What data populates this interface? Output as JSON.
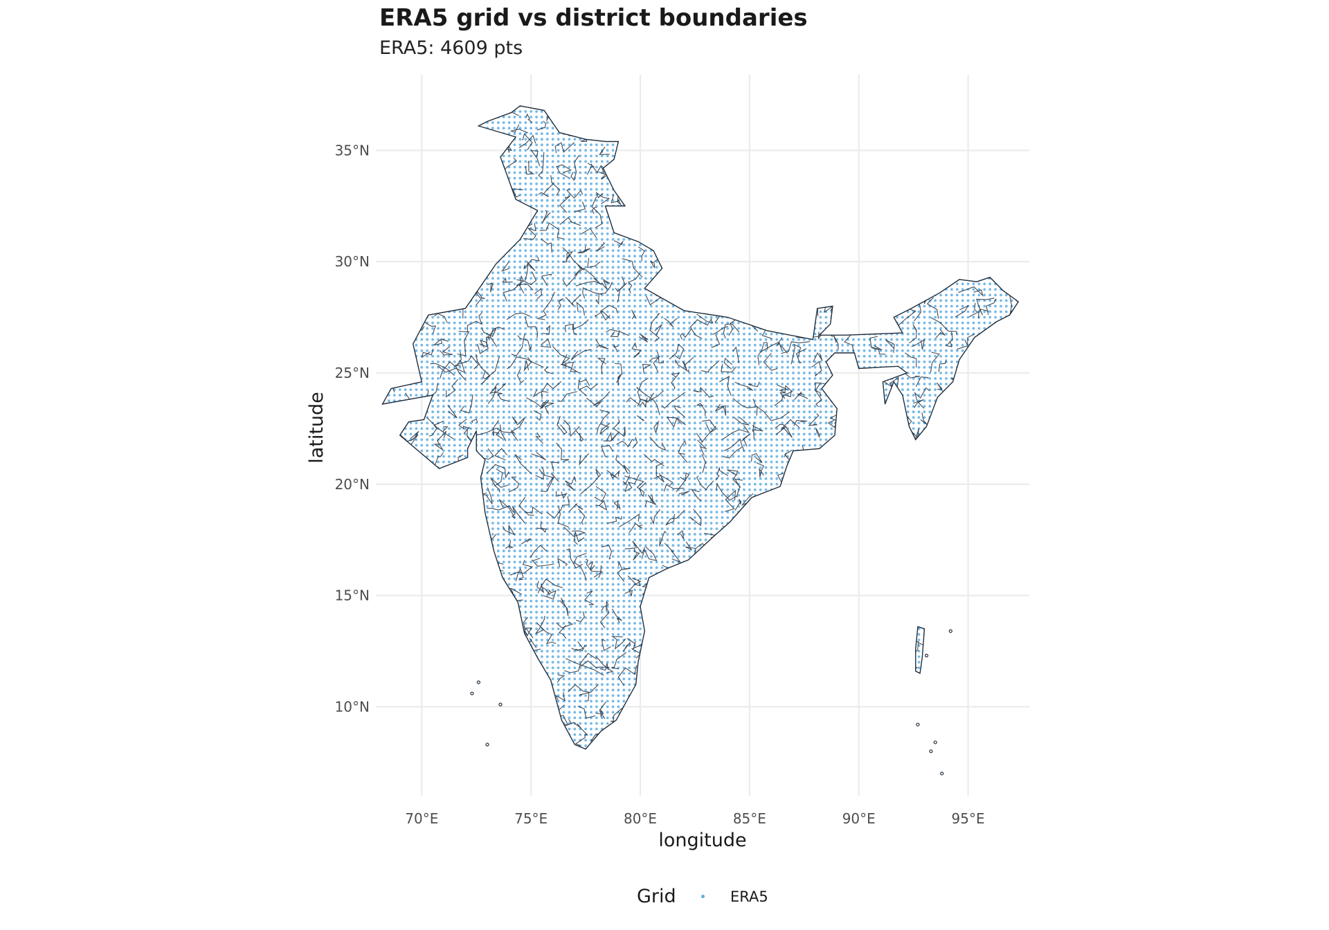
{
  "chart_data": {
    "type": "map",
    "title": "ERA5 grid vs district boundaries",
    "subtitle": "ERA5: 4609 pts",
    "xlabel": "longitude",
    "ylabel": "latitude",
    "x_ticks": [
      {
        "value": 70,
        "label": "70°E"
      },
      {
        "value": 75,
        "label": "75°E"
      },
      {
        "value": 80,
        "label": "80°E"
      },
      {
        "value": 85,
        "label": "85°E"
      },
      {
        "value": 90,
        "label": "90°E"
      },
      {
        "value": 95,
        "label": "95°E"
      }
    ],
    "y_ticks": [
      {
        "value": 10,
        "label": "10°N"
      },
      {
        "value": 15,
        "label": "15°N"
      },
      {
        "value": 20,
        "label": "20°N"
      },
      {
        "value": 25,
        "label": "25°N"
      },
      {
        "value": 30,
        "label": "30°N"
      },
      {
        "value": 35,
        "label": "35°N"
      }
    ],
    "xlim": [
      67.9,
      97.8
    ],
    "ylim": [
      6.0,
      38.4
    ],
    "grid_points": 4609,
    "grid_resolution_deg": 0.25,
    "legend": {
      "title": "Grid",
      "entries": [
        {
          "label": "ERA5",
          "color": "#5dade2"
        }
      ]
    },
    "boundary_color": "#1f2d3d",
    "point_color": "#5dade2",
    "outline": {
      "mainland": [
        [
          70.5,
          24.0
        ],
        [
          68.2,
          23.6
        ],
        [
          68.6,
          24.3
        ],
        [
          70.0,
          24.6
        ],
        [
          69.6,
          26.3
        ],
        [
          70.3,
          27.6
        ],
        [
          72.0,
          27.9
        ],
        [
          73.4,
          29.9
        ],
        [
          74.5,
          31.0
        ],
        [
          75.3,
          32.3
        ],
        [
          74.3,
          32.8
        ],
        [
          73.9,
          33.9
        ],
        [
          73.6,
          34.7
        ],
        [
          74.3,
          35.6
        ],
        [
          72.6,
          36.1
        ],
        [
          73.0,
          36.3
        ],
        [
          74.1,
          36.7
        ],
        [
          74.5,
          37.0
        ],
        [
          75.6,
          36.8
        ],
        [
          76.3,
          35.8
        ],
        [
          77.5,
          35.5
        ],
        [
          78.4,
          35.4
        ],
        [
          79.0,
          35.4
        ],
        [
          78.8,
          34.6
        ],
        [
          78.3,
          34.2
        ],
        [
          78.8,
          33.2
        ],
        [
          79.3,
          32.5
        ],
        [
          78.4,
          32.5
        ],
        [
          78.8,
          31.3
        ],
        [
          79.9,
          30.9
        ],
        [
          80.6,
          30.5
        ],
        [
          81.0,
          29.7
        ],
        [
          80.2,
          28.8
        ],
        [
          82.0,
          27.8
        ],
        [
          84.0,
          27.5
        ],
        [
          85.8,
          26.9
        ],
        [
          87.9,
          26.5
        ],
        [
          88.1,
          27.9
        ],
        [
          88.8,
          28.0
        ],
        [
          88.7,
          27.2
        ],
        [
          88.2,
          26.7
        ],
        [
          89.4,
          26.7
        ],
        [
          92.0,
          26.8
        ],
        [
          91.6,
          27.5
        ],
        [
          92.4,
          27.9
        ],
        [
          93.7,
          28.6
        ],
        [
          94.6,
          29.2
        ],
        [
          95.4,
          29.1
        ],
        [
          96.0,
          29.3
        ],
        [
          96.6,
          28.7
        ],
        [
          97.3,
          28.2
        ],
        [
          96.9,
          27.6
        ],
        [
          96.3,
          27.3
        ],
        [
          95.3,
          26.6
        ],
        [
          94.6,
          25.6
        ],
        [
          94.3,
          24.6
        ],
        [
          93.6,
          23.9
        ],
        [
          93.1,
          22.6
        ],
        [
          92.6,
          22.0
        ],
        [
          92.3,
          22.6
        ],
        [
          92.0,
          24.0
        ],
        [
          91.6,
          24.6
        ],
        [
          91.2,
          23.6
        ],
        [
          91.1,
          24.6
        ],
        [
          92.2,
          25.0
        ],
        [
          91.8,
          25.3
        ],
        [
          90.0,
          25.2
        ],
        [
          89.8,
          25.9
        ],
        [
          88.9,
          25.9
        ],
        [
          88.5,
          25.5
        ],
        [
          88.8,
          24.9
        ],
        [
          88.3,
          24.3
        ],
        [
          89.0,
          23.4
        ],
        [
          88.9,
          22.2
        ],
        [
          88.2,
          21.6
        ],
        [
          87.0,
          21.5
        ],
        [
          86.7,
          20.8
        ],
        [
          86.4,
          19.9
        ],
        [
          85.1,
          19.4
        ],
        [
          84.1,
          18.3
        ],
        [
          83.3,
          17.6
        ],
        [
          82.2,
          16.6
        ],
        [
          81.2,
          16.2
        ],
        [
          80.4,
          15.8
        ],
        [
          80.0,
          14.5
        ],
        [
          80.2,
          13.4
        ],
        [
          79.9,
          12.0
        ],
        [
          79.8,
          11.0
        ],
        [
          79.4,
          10.3
        ],
        [
          78.9,
          9.4
        ],
        [
          78.2,
          8.9
        ],
        [
          77.5,
          8.1
        ],
        [
          77.0,
          8.3
        ],
        [
          76.4,
          9.4
        ],
        [
          75.9,
          11.2
        ],
        [
          75.3,
          12.2
        ],
        [
          74.7,
          13.3
        ],
        [
          74.4,
          14.7
        ],
        [
          73.7,
          15.8
        ],
        [
          73.3,
          17.0
        ],
        [
          72.9,
          18.7
        ],
        [
          72.7,
          20.3
        ],
        [
          72.9,
          21.1
        ],
        [
          72.5,
          21.5
        ],
        [
          72.5,
          22.4
        ],
        [
          72.1,
          21.6
        ],
        [
          72.1,
          21.2
        ],
        [
          70.8,
          20.7
        ],
        [
          69.0,
          22.2
        ],
        [
          69.4,
          22.8
        ],
        [
          70.1,
          22.9
        ],
        [
          70.5,
          24.0
        ]
      ],
      "andaman": [
        [
          92.7,
          13.6
        ],
        [
          93.0,
          13.5
        ],
        [
          92.9,
          12.2
        ],
        [
          92.8,
          11.5
        ],
        [
          92.6,
          11.6
        ],
        [
          92.6,
          12.6
        ],
        [
          92.7,
          13.6
        ]
      ]
    }
  }
}
